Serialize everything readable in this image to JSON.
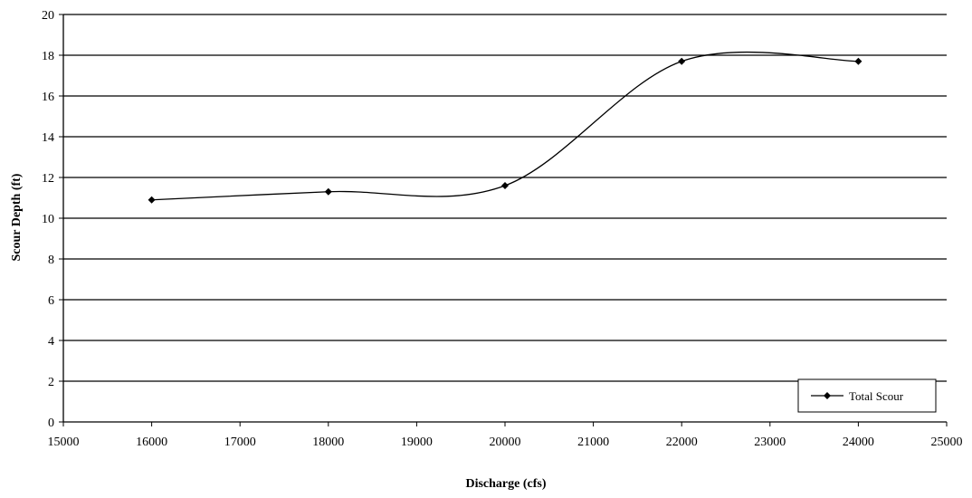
{
  "chart_data": {
    "type": "line",
    "title": "",
    "xlabel": "Discharge (cfs)",
    "ylabel": "Scour Depth (ft)",
    "xlim": [
      15000,
      25000
    ],
    "ylim": [
      0,
      20
    ],
    "x_ticks": [
      15000,
      16000,
      17000,
      18000,
      19000,
      20000,
      21000,
      22000,
      23000,
      24000,
      25000
    ],
    "y_ticks": [
      0,
      2,
      4,
      6,
      8,
      10,
      12,
      14,
      16,
      18,
      20
    ],
    "grid": "horizontal",
    "smoothed": true,
    "legend_position": "bottom-right",
    "series": [
      {
        "name": "Total Scour",
        "color": "#000000",
        "marker": "diamond",
        "x": [
          16000,
          18000,
          20000,
          22000,
          24000
        ],
        "y": [
          10.9,
          11.3,
          11.6,
          17.7,
          17.7
        ]
      }
    ]
  }
}
